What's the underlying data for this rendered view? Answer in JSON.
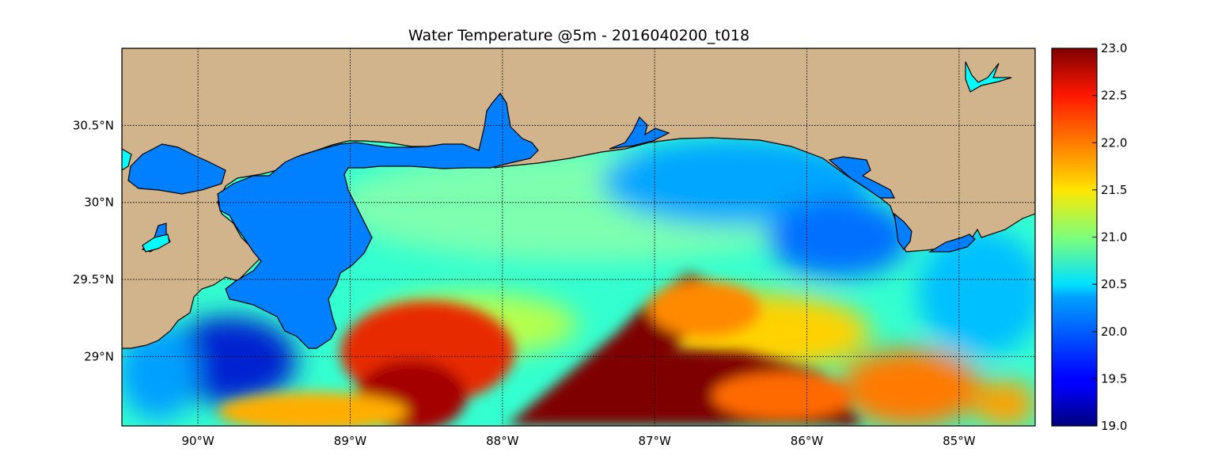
{
  "title": "Water Temperature @5m - 2016040200_t018",
  "map": {
    "lon_range": [
      -90.5,
      -84.5
    ],
    "lat_range": [
      28.55,
      31.0
    ],
    "lon_ticks": [
      {
        "value": -90,
        "label": "90°W"
      },
      {
        "value": -89,
        "label": "89°W"
      },
      {
        "value": -88,
        "label": "88°W"
      },
      {
        "value": -87,
        "label": "87°W"
      },
      {
        "value": -86,
        "label": "86°W"
      },
      {
        "value": -85,
        "label": "85°W"
      }
    ],
    "lat_ticks": [
      {
        "value": 30.5,
        "label": "30.5°N"
      },
      {
        "value": 30.0,
        "label": "30°N"
      },
      {
        "value": 29.5,
        "label": "29.5°N"
      },
      {
        "value": 29.0,
        "label": "29°N"
      }
    ],
    "grid": "dotted",
    "land_color": "#d2b48c",
    "inland_water_color": "#0080ff",
    "colormap": "jet"
  },
  "colorbar": {
    "min": 19.0,
    "max": 23.0,
    "ticks": [
      "19.0",
      "19.5",
      "20.0",
      "20.5",
      "21.0",
      "21.5",
      "22.0",
      "22.5",
      "23.0"
    ]
  }
}
